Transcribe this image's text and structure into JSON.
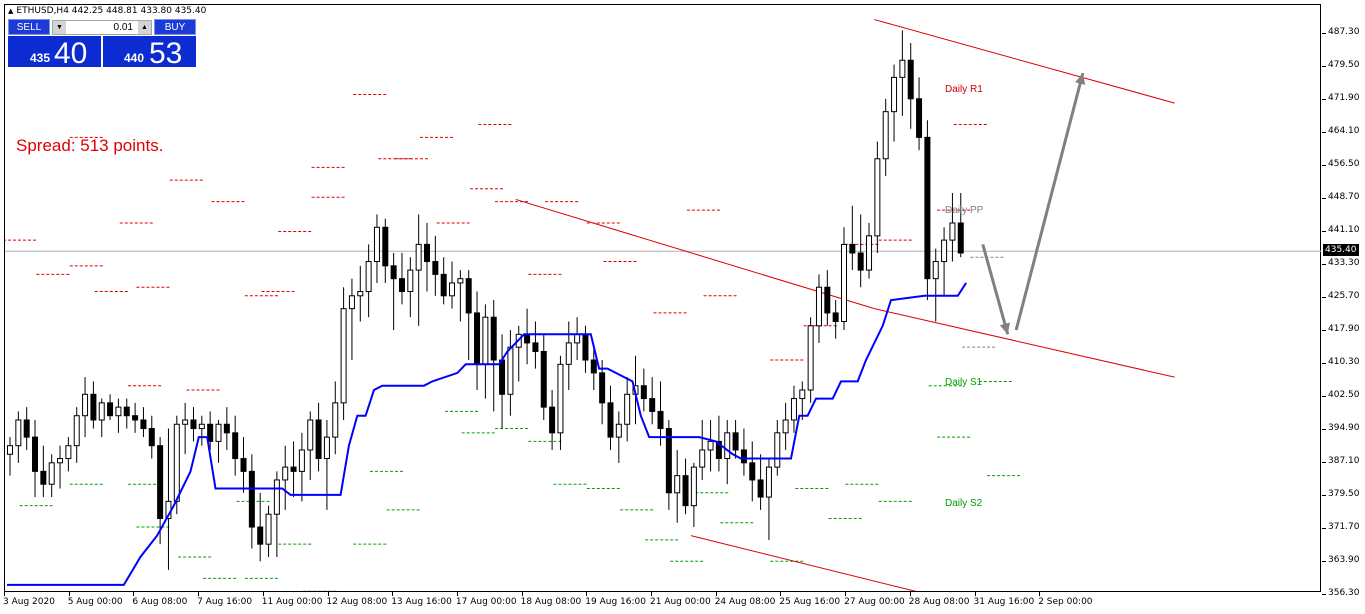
{
  "window": {
    "symbol_title": "ETHUSD,H4  442.25 448.81 433.80 435.40",
    "current_price_tag": "435.40",
    "spread_text": "Spread: 513 points."
  },
  "trade_panel": {
    "sell_label": "SELL",
    "buy_label": "BUY",
    "lot_value": "0.01",
    "sell_small": "435",
    "sell_big": "40",
    "buy_small": "440",
    "buy_big": "53"
  },
  "pivot_labels": {
    "r1": "Daily R1",
    "pp": "Daily PP",
    "s1": "Daily S1",
    "s2": "Daily S2"
  },
  "colors": {
    "bull_candle": "#ffffff",
    "bear_candle": "#000000",
    "supertrend": "#0000ff",
    "channel": "#dd0000",
    "resistance_dash": "#dd0000",
    "support_dash": "#00a000",
    "pivot_dash": "#808080",
    "arrow": "#808080",
    "r1_label": "#cc0000",
    "pp_label": "#808080",
    "s_label": "#00a000"
  },
  "chart_data": {
    "type": "candlestick",
    "timeframe": "H4",
    "y_range": [
      356.0,
      489.5
    ],
    "y_ticks": [
      "487.30",
      "479.50",
      "471.90",
      "464.10",
      "456.50",
      "448.70",
      "441.10",
      "433.30",
      "425.70",
      "417.90",
      "410.30",
      "402.50",
      "394.90",
      "387.10",
      "379.50",
      "371.70",
      "363.90",
      "356.30"
    ],
    "x_ticks": [
      "3 Aug 2020",
      "5 Aug 00:00",
      "6 Aug 08:00",
      "7 Aug 16:00",
      "11 Aug 00:00",
      "12 Aug 08:00",
      "13 Aug 16:00",
      "17 Aug 00:00",
      "18 Aug 08:00",
      "19 Aug 16:00",
      "21 Aug 00:00",
      "24 Aug 08:00",
      "25 Aug 16:00",
      "27 Aug 00:00",
      "28 Aug 08:00",
      "31 Aug 16:00",
      "2 Sep 00:00"
    ],
    "current_price": 435.4,
    "candles": [
      [
        388,
        392,
        383,
        390
      ],
      [
        390,
        398,
        386,
        396
      ],
      [
        396,
        399,
        389,
        392
      ],
      [
        392,
        396,
        378,
        384
      ],
      [
        384,
        390,
        378,
        381
      ],
      [
        381,
        388,
        378,
        386
      ],
      [
        386,
        390,
        380,
        387
      ],
      [
        387,
        392,
        384,
        390
      ],
      [
        390,
        399,
        386,
        397
      ],
      [
        397,
        406,
        392,
        402
      ],
      [
        402,
        405,
        394,
        396
      ],
      [
        396,
        401,
        392,
        400
      ],
      [
        400,
        402,
        396,
        397
      ],
      [
        397,
        401,
        393,
        399
      ],
      [
        399,
        401,
        394,
        397
      ],
      [
        397,
        400,
        393,
        396
      ],
      [
        396,
        399,
        392,
        394
      ],
      [
        394,
        397,
        387,
        390
      ],
      [
        390,
        392,
        367,
        373
      ],
      [
        373,
        394,
        361,
        377
      ],
      [
        377,
        397,
        374,
        395
      ],
      [
        395,
        400,
        388,
        396
      ],
      [
        396,
        399,
        391,
        394
      ],
      [
        394,
        397,
        390,
        395
      ],
      [
        395,
        398,
        389,
        391
      ],
      [
        391,
        396,
        386,
        395
      ],
      [
        395,
        399,
        389,
        393
      ],
      [
        393,
        397,
        383,
        387
      ],
      [
        387,
        392,
        379,
        384
      ],
      [
        384,
        388,
        366,
        371
      ],
      [
        371,
        379,
        363,
        367
      ],
      [
        367,
        376,
        364,
        374
      ],
      [
        374,
        384,
        364,
        382
      ],
      [
        382,
        390,
        375,
        385
      ],
      [
        385,
        391,
        378,
        384
      ],
      [
        384,
        393,
        377,
        389
      ],
      [
        389,
        398,
        382,
        396
      ],
      [
        396,
        400,
        384,
        387
      ],
      [
        387,
        396,
        375,
        392
      ],
      [
        392,
        405,
        388,
        400
      ],
      [
        400,
        427,
        396,
        422
      ],
      [
        422,
        429,
        410,
        425
      ],
      [
        425,
        432,
        419,
        426
      ],
      [
        426,
        437,
        420,
        433
      ],
      [
        433,
        444,
        428,
        441
      ],
      [
        441,
        443,
        428,
        432
      ],
      [
        432,
        435,
        417,
        429
      ],
      [
        429,
        435,
        423,
        426
      ],
      [
        426,
        434,
        420,
        431
      ],
      [
        431,
        444,
        418,
        437
      ],
      [
        437,
        442,
        426,
        433
      ],
      [
        433,
        439,
        425,
        430
      ],
      [
        430,
        434,
        423,
        425
      ],
      [
        425,
        433,
        422,
        428
      ],
      [
        428,
        431,
        419,
        429
      ],
      [
        429,
        431,
        410,
        421
      ],
      [
        421,
        426,
        403,
        409
      ],
      [
        409,
        423,
        401,
        420
      ],
      [
        420,
        424,
        398,
        410
      ],
      [
        410,
        416,
        394,
        402
      ],
      [
        402,
        417,
        397,
        413
      ],
      [
        413,
        418,
        405,
        416
      ],
      [
        416,
        422,
        409,
        414
      ],
      [
        414,
        419,
        408,
        412
      ],
      [
        412,
        416,
        396,
        399
      ],
      [
        399,
        403,
        389,
        393
      ],
      [
        393,
        411,
        389,
        409
      ],
      [
        409,
        419,
        403,
        414
      ],
      [
        414,
        420,
        410,
        416
      ],
      [
        416,
        418,
        407,
        410
      ],
      [
        410,
        413,
        403,
        407
      ],
      [
        407,
        410,
        395,
        400
      ],
      [
        400,
        404,
        389,
        392
      ],
      [
        392,
        398,
        386,
        395
      ],
      [
        395,
        406,
        391,
        402
      ],
      [
        402,
        411,
        395,
        404
      ],
      [
        404,
        408,
        398,
        401
      ],
      [
        401,
        406,
        395,
        398
      ],
      [
        398,
        405,
        390,
        394
      ],
      [
        394,
        396,
        375,
        379
      ],
      [
        379,
        389,
        372,
        383
      ],
      [
        383,
        387,
        374,
        376
      ],
      [
        376,
        386,
        371,
        385
      ],
      [
        385,
        396,
        382,
        389
      ],
      [
        389,
        396,
        384,
        391
      ],
      [
        391,
        397,
        384,
        387
      ],
      [
        387,
        396,
        381,
        393
      ],
      [
        393,
        396,
        387,
        389
      ],
      [
        389,
        394,
        383,
        386
      ],
      [
        386,
        391,
        377,
        382
      ],
      [
        382,
        388,
        375,
        378
      ],
      [
        378,
        387,
        368,
        385
      ],
      [
        385,
        396,
        383,
        393
      ],
      [
        393,
        400,
        389,
        396
      ],
      [
        396,
        404,
        393,
        401
      ],
      [
        401,
        405,
        396,
        403
      ],
      [
        403,
        420,
        400,
        418
      ],
      [
        418,
        430,
        414,
        427
      ],
      [
        427,
        431,
        418,
        421
      ],
      [
        421,
        424,
        415,
        419
      ],
      [
        419,
        441,
        417,
        437
      ],
      [
        437,
        446,
        431,
        435
      ],
      [
        435,
        444,
        427,
        431
      ],
      [
        431,
        442,
        429,
        439
      ],
      [
        439,
        461,
        435,
        457
      ],
      [
        457,
        471,
        453,
        468
      ],
      [
        468,
        479,
        461,
        476
      ],
      [
        476,
        487,
        467,
        480
      ],
      [
        480,
        484,
        464,
        471
      ],
      [
        471,
        476,
        459,
        462
      ],
      [
        462,
        466,
        424,
        429
      ],
      [
        429,
        436,
        419,
        433
      ],
      [
        433,
        441,
        425,
        438
      ],
      [
        438,
        449,
        433,
        442
      ],
      [
        442,
        449,
        434,
        435
      ]
    ],
    "supertrend": [
      [
        0,
        357.5
      ],
      [
        14,
        357.5
      ],
      [
        16,
        364
      ],
      [
        18,
        369
      ],
      [
        20,
        376
      ],
      [
        22,
        384
      ],
      [
        23,
        392
      ],
      [
        24,
        392
      ],
      [
        25,
        380
      ],
      [
        33,
        380
      ],
      [
        34,
        378.5
      ],
      [
        40,
        378.5
      ],
      [
        41,
        390
      ],
      [
        42,
        397
      ],
      [
        43,
        397
      ],
      [
        44,
        403
      ],
      [
        45,
        404
      ],
      [
        50,
        404
      ],
      [
        51,
        405
      ],
      [
        54,
        407
      ],
      [
        55,
        409
      ],
      [
        56,
        409
      ],
      [
        59,
        409
      ],
      [
        60,
        412
      ],
      [
        62,
        416
      ],
      [
        64,
        416
      ],
      [
        70,
        416
      ],
      [
        71,
        408
      ],
      [
        72,
        408
      ],
      [
        75,
        405
      ],
      [
        76,
        397
      ],
      [
        77,
        392
      ],
      [
        83,
        392
      ],
      [
        85,
        391
      ],
      [
        87,
        388
      ],
      [
        88,
        387
      ],
      [
        94,
        387
      ],
      [
        95,
        397
      ],
      [
        96,
        397
      ],
      [
        97,
        401
      ],
      [
        99,
        401
      ],
      [
        100,
        405
      ],
      [
        102,
        405
      ],
      [
        103,
        410
      ],
      [
        105,
        418
      ],
      [
        106,
        424
      ],
      [
        110,
        425
      ],
      [
        111,
        425
      ],
      [
        114,
        425
      ],
      [
        115,
        428
      ]
    ],
    "channel_lines": [
      {
        "name": "upper",
        "from": [
          104,
          489.5
        ],
        "to": [
          140,
          470
        ]
      },
      {
        "name": "lower",
        "from": [
          104,
          422
        ],
        "to": [
          140,
          406
        ]
      },
      {
        "name": "lower-left",
        "from": [
          61,
          447.5
        ],
        "to": [
          104,
          422
        ]
      },
      {
        "name": "bottom",
        "from": [
          82,
          369
        ],
        "to": [
          111,
          355
        ]
      }
    ],
    "arrows": [
      {
        "from": [
          117,
          437
        ],
        "to": [
          120,
          416
        ]
      },
      {
        "from": [
          121,
          417
        ],
        "to": [
          129,
          477
        ]
      }
    ],
    "levels": {
      "resistance": [
        [
          0,
          438
        ],
        [
          8,
          462
        ],
        [
          14,
          442
        ],
        [
          16,
          427
        ],
        [
          25,
          447
        ],
        [
          31,
          426
        ],
        [
          37,
          455
        ],
        [
          42,
          472
        ],
        [
          50,
          462
        ],
        [
          57,
          465
        ],
        [
          65,
          447
        ],
        [
          72,
          433
        ],
        [
          78,
          421
        ],
        [
          84,
          425
        ],
        [
          96,
          418
        ],
        [
          105,
          438
        ],
        [
          114,
          465
        ],
        [
          8,
          432
        ],
        [
          4,
          430
        ],
        [
          20,
          452
        ],
        [
          29,
          425
        ],
        [
          33,
          440
        ],
        [
          37,
          448
        ],
        [
          45,
          457
        ],
        [
          52,
          442
        ],
        [
          59,
          447
        ],
        [
          70,
          442
        ],
        [
          82,
          445
        ],
        [
          92,
          410
        ],
        [
          101,
          437
        ],
        [
          112,
          445
        ],
        [
          15,
          404
        ],
        [
          22,
          403
        ],
        [
          11,
          426
        ],
        [
          47,
          457
        ],
        [
          56,
          450
        ],
        [
          63,
          430
        ]
      ],
      "support": [
        [
          8,
          381
        ],
        [
          16,
          371
        ],
        [
          21,
          364
        ],
        [
          28,
          377
        ],
        [
          33,
          367
        ],
        [
          36,
          356
        ],
        [
          42,
          367
        ],
        [
          46,
          375
        ],
        [
          53,
          398
        ],
        [
          59,
          394
        ],
        [
          66,
          381
        ],
        [
          74,
          375
        ],
        [
          80,
          363
        ],
        [
          86,
          372
        ],
        [
          92,
          363
        ],
        [
          99,
          373
        ],
        [
          105,
          377
        ],
        [
          112,
          392
        ],
        [
          118,
          383
        ],
        [
          2,
          376
        ],
        [
          15,
          381
        ],
        [
          24,
          359
        ],
        [
          29,
          359
        ],
        [
          44,
          384
        ],
        [
          55,
          393
        ],
        [
          63,
          391
        ],
        [
          70,
          380
        ],
        [
          77,
          368
        ],
        [
          83,
          379
        ],
        [
          95,
          380
        ],
        [
          101,
          381
        ],
        [
          111,
          404
        ],
        [
          117,
          405
        ]
      ],
      "pivot": [
        [
          115,
          413
        ],
        [
          116,
          434
        ]
      ]
    }
  }
}
